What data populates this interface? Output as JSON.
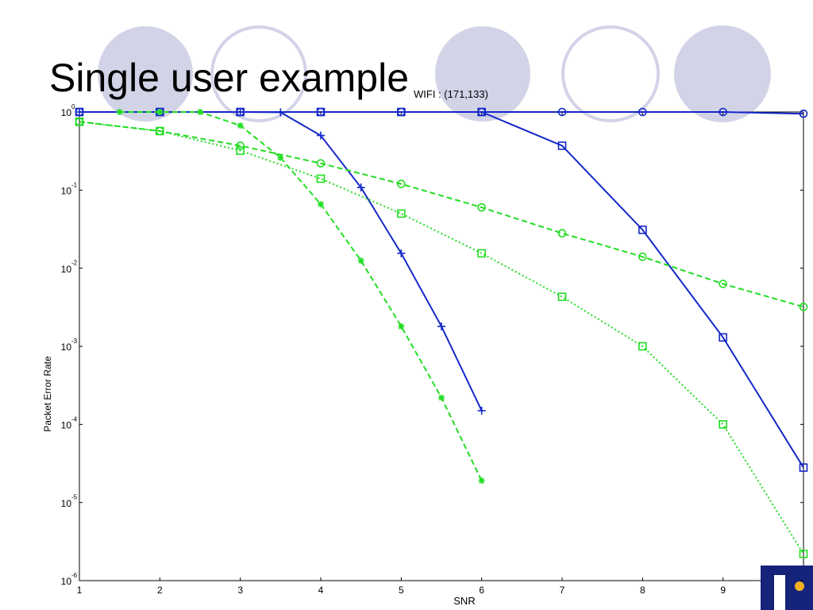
{
  "slide_title": "Single user example",
  "chart_data": {
    "type": "line",
    "title": "WIFI : (171,133)",
    "x_label": "SNR",
    "y_label": "Packet Error Rate",
    "xlim": [
      1,
      10
    ],
    "xticks": [
      1,
      2,
      3,
      4,
      5,
      6,
      7,
      8,
      9
    ],
    "ylim": [
      1e-06,
      1
    ],
    "y_scale": "log",
    "yticks": [
      {
        "value": 1,
        "label": "10",
        "exponent": "0"
      },
      {
        "value": 0.1,
        "label": "10",
        "exponent": "-1"
      },
      {
        "value": 0.01,
        "label": "10",
        "exponent": "-2"
      },
      {
        "value": 0.001,
        "label": "10",
        "exponent": "-3"
      },
      {
        "value": 0.0001,
        "label": "10",
        "exponent": "-4"
      },
      {
        "value": 1e-05,
        "label": "10",
        "exponent": "-5"
      },
      {
        "value": 1e-06,
        "label": "10",
        "exponent": "-6"
      }
    ],
    "series": [
      {
        "color": "#1428c8",
        "marker": "circle",
        "dash": "solid",
        "x": [
          1,
          2,
          3,
          4,
          5,
          6,
          7,
          8,
          9,
          10
        ],
        "values": [
          1,
          1,
          1,
          1,
          1,
          1,
          1,
          1,
          1,
          0.95
        ]
      },
      {
        "color": "#1428c8",
        "marker": "square",
        "dash": "solid",
        "x": [
          1,
          2,
          3,
          4,
          5,
          6,
          7,
          8,
          9,
          10
        ],
        "values": [
          1,
          1,
          1,
          1,
          1,
          1,
          0.37,
          0.031,
          0.0013,
          2.8e-05
        ]
      },
      {
        "color": "#1428c8",
        "marker": "plus",
        "dash": "solid",
        "x": [
          1,
          2,
          3,
          3.5,
          4,
          4.5,
          5,
          5.5,
          6
        ],
        "values": [
          1,
          1,
          1,
          0.99,
          0.5,
          0.108,
          0.0155,
          0.0018,
          0.00015
        ]
      },
      {
        "color": "#22dd22",
        "marker": "circle",
        "dash": "dashed",
        "x": [
          1,
          2,
          3,
          4,
          5,
          6,
          7,
          8,
          9,
          10
        ],
        "values": [
          0.75,
          0.57,
          0.37,
          0.22,
          0.12,
          0.06,
          0.028,
          0.014,
          0.0063,
          0.0032
        ]
      },
      {
        "color": "#22dd22",
        "marker": "square",
        "dash": "dotted",
        "x": [
          1,
          2,
          3,
          4,
          5,
          6,
          7,
          8,
          9,
          10
        ],
        "values": [
          0.75,
          0.57,
          0.32,
          0.14,
          0.05,
          0.0155,
          0.0043,
          0.001,
          0.0001,
          2.2e-06
        ]
      },
      {
        "color": "#22dd22",
        "marker": "star",
        "dash": "dashed",
        "x": [
          1.5,
          2,
          2.5,
          3,
          3.5,
          4,
          4.5,
          5,
          5.5,
          6
        ],
        "values": [
          1,
          1,
          1,
          0.67,
          0.26,
          0.066,
          0.0125,
          0.0018,
          0.00022,
          1.9e-05
        ]
      }
    ]
  }
}
